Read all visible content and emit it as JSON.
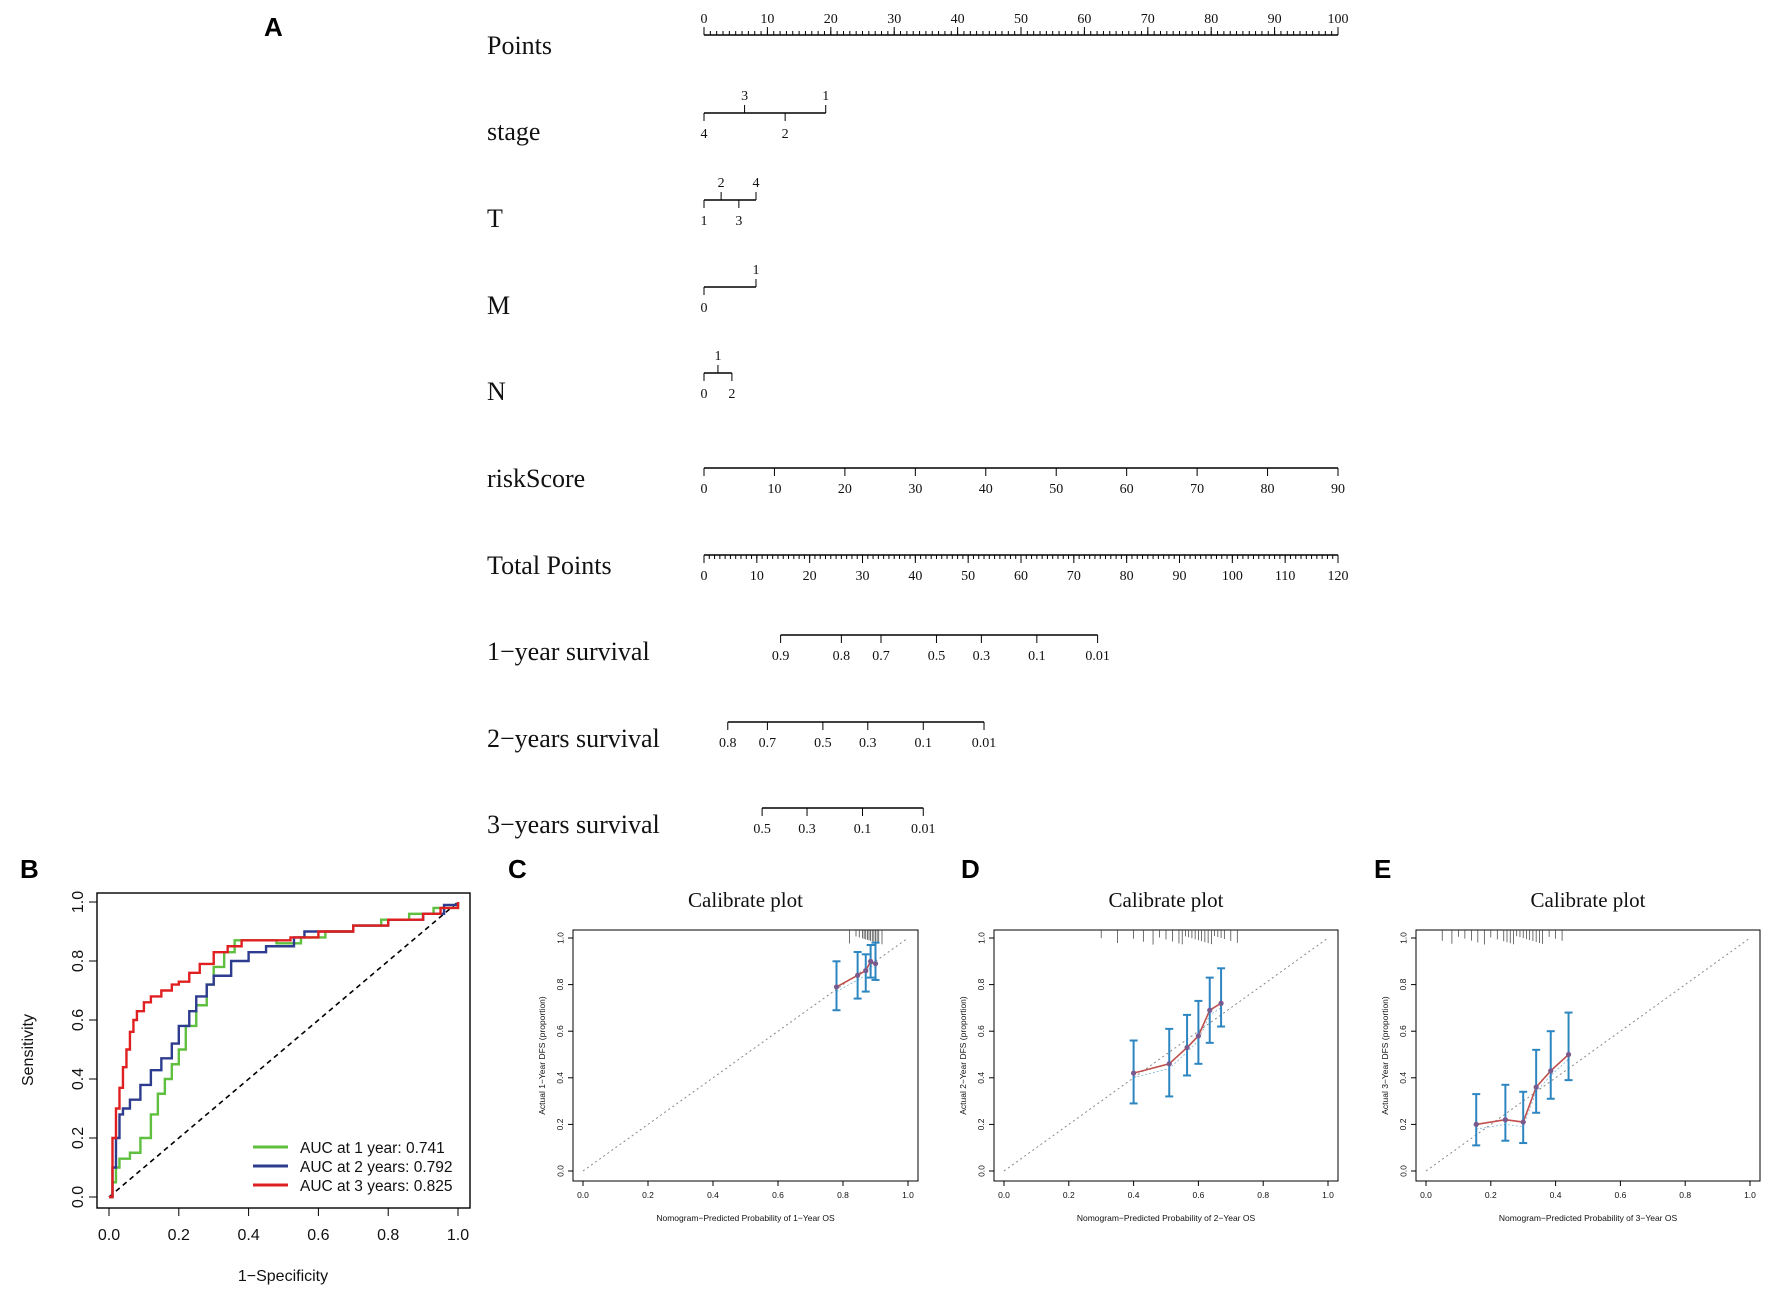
{
  "panels": {
    "A": "A",
    "B": "B",
    "C": "C",
    "D": "D",
    "E": "E"
  },
  "chart_data": [
    {
      "panel": "A",
      "type": "nomogram",
      "rows": [
        {
          "label": "Points",
          "kind": "scale",
          "min": 0,
          "max": 100,
          "ticks": [
            "0",
            "10",
            "20",
            "30",
            "40",
            "50",
            "60",
            "70",
            "80",
            "90",
            "100"
          ],
          "minor_step": 1
        },
        {
          "label": "stage",
          "kind": "categorical",
          "span_points": [
            0,
            19.2
          ],
          "above": [
            {
              "text": "3",
              "points": 6.4
            },
            {
              "text": "1",
              "points": 19.2
            }
          ],
          "below": [
            {
              "text": "4",
              "points": 0
            },
            {
              "text": "2",
              "points": 12.8
            }
          ]
        },
        {
          "label": "T",
          "kind": "categorical",
          "span_points": [
            0,
            8.2
          ],
          "above": [
            {
              "text": "2",
              "points": 2.7
            },
            {
              "text": "4",
              "points": 8.2
            }
          ],
          "below": [
            {
              "text": "1",
              "points": 0
            },
            {
              "text": "3",
              "points": 5.5
            }
          ]
        },
        {
          "label": "M",
          "kind": "categorical",
          "span_points": [
            0,
            8.2
          ],
          "above": [
            {
              "text": "1",
              "points": 8.2
            }
          ],
          "below": [
            {
              "text": "0",
              "points": 0
            }
          ]
        },
        {
          "label": "N",
          "kind": "categorical",
          "span_points": [
            0,
            4.4
          ],
          "above": [
            {
              "text": "1",
              "points": 2.2
            }
          ],
          "below": [
            {
              "text": "0",
              "points": 0
            },
            {
              "text": "2",
              "points": 4.4
            }
          ]
        },
        {
          "label": "riskScore",
          "kind": "scale",
          "min": 0,
          "max": 90,
          "ticks": [
            "0",
            "10",
            "20",
            "30",
            "40",
            "50",
            "60",
            "70",
            "80",
            "90"
          ],
          "minor_step": 0
        },
        {
          "label": "Total Points",
          "kind": "scale",
          "min": 0,
          "max": 120,
          "ticks": [
            "0",
            "10",
            "20",
            "30",
            "40",
            "50",
            "60",
            "70",
            "80",
            "90",
            "100",
            "110",
            "120"
          ],
          "minor_step": 1
        },
        {
          "label": "1−year survival",
          "kind": "survival",
          "marks": [
            {
              "text": "0.9",
              "total": 14.5
            },
            {
              "text": "0.8",
              "total": 26
            },
            {
              "text": "0.7",
              "total": 33.5
            },
            {
              "text": "0.5",
              "total": 44
            },
            {
              "text": "0.3",
              "total": 52.5
            },
            {
              "text": "0.1",
              "total": 63
            },
            {
              "text": "0.01",
              "total": 74.5
            }
          ]
        },
        {
          "label": "2−years survival",
          "kind": "survival",
          "marks": [
            {
              "text": "0.8",
              "total": 4.5
            },
            {
              "text": "0.7",
              "total": 12
            },
            {
              "text": "0.5",
              "total": 22.5
            },
            {
              "text": "0.3",
              "total": 31
            },
            {
              "text": "0.1",
              "total": 41.5
            },
            {
              "text": "0.01",
              "total": 53
            }
          ]
        },
        {
          "label": "3−years survival",
          "kind": "survival",
          "marks": [
            {
              "text": "0.5",
              "total": 11
            },
            {
              "text": "0.3",
              "total": 19.5
            },
            {
              "text": "0.1",
              "total": 30
            },
            {
              "text": "0.01",
              "total": 41.5
            }
          ]
        }
      ]
    },
    {
      "panel": "B",
      "type": "line",
      "xlabel": "1−Specificity",
      "ylabel": "Sensitivity",
      "xlim": [
        0,
        1
      ],
      "ylim": [
        0,
        1
      ],
      "xticks": [
        "0.0",
        "0.2",
        "0.4",
        "0.6",
        "0.8",
        "1.0"
      ],
      "yticks": [
        "0.0",
        "0.2",
        "0.4",
        "0.6",
        "0.8",
        "1.0"
      ],
      "legend_position": "bottom-right",
      "series": [
        {
          "name": "AUC at 1 year: 0.741",
          "color": "#5fbf3f",
          "x": [
            0,
            0.01,
            0.02,
            0.03,
            0.06,
            0.09,
            0.12,
            0.14,
            0.16,
            0.18,
            0.2,
            0.22,
            0.25,
            0.28,
            0.3,
            0.33,
            0.36,
            0.38,
            0.42,
            0.48,
            0.55,
            0.62,
            0.7,
            0.78,
            0.86,
            0.93,
            1
          ],
          "y": [
            0,
            0.05,
            0.1,
            0.13,
            0.15,
            0.2,
            0.28,
            0.35,
            0.4,
            0.45,
            0.5,
            0.58,
            0.65,
            0.72,
            0.78,
            0.83,
            0.87,
            0.87,
            0.87,
            0.86,
            0.88,
            0.9,
            0.92,
            0.94,
            0.96,
            0.98,
            1
          ]
        },
        {
          "name": "AUC at 2 years: 0.792",
          "color": "#2e3c8f",
          "x": [
            0,
            0.01,
            0.02,
            0.03,
            0.04,
            0.06,
            0.09,
            0.12,
            0.15,
            0.18,
            0.2,
            0.23,
            0.25,
            0.28,
            0.3,
            0.35,
            0.4,
            0.45,
            0.5,
            0.53,
            0.56,
            0.62,
            0.7,
            0.8,
            0.9,
            0.96,
            1
          ],
          "y": [
            0,
            0.1,
            0.2,
            0.28,
            0.3,
            0.33,
            0.38,
            0.43,
            0.47,
            0.52,
            0.58,
            0.63,
            0.68,
            0.72,
            0.75,
            0.8,
            0.83,
            0.85,
            0.85,
            0.88,
            0.9,
            0.9,
            0.92,
            0.94,
            0.96,
            0.99,
            1
          ]
        },
        {
          "name": "AUC at 3 years: 0.825",
          "color": "#e02020",
          "x": [
            0,
            0.01,
            0.02,
            0.03,
            0.04,
            0.05,
            0.06,
            0.07,
            0.08,
            0.1,
            0.12,
            0.15,
            0.18,
            0.2,
            0.23,
            0.26,
            0.3,
            0.34,
            0.38,
            0.45,
            0.52,
            0.6,
            0.7,
            0.8,
            0.9,
            0.95,
            1
          ],
          "y": [
            0,
            0.2,
            0.3,
            0.37,
            0.44,
            0.5,
            0.56,
            0.6,
            0.63,
            0.66,
            0.68,
            0.7,
            0.72,
            0.73,
            0.76,
            0.79,
            0.83,
            0.85,
            0.87,
            0.87,
            0.88,
            0.9,
            0.92,
            0.94,
            0.96,
            0.98,
            1
          ]
        }
      ],
      "reference_line": "diagonal"
    },
    {
      "panel": "C",
      "type": "scatter",
      "title": "Calibrate plot",
      "xlabel": "Nomogram−Predicted Probability of 1−Year OS",
      "ylabel": "Actual 1−Year DFS (proportion)",
      "xlim": [
        0,
        1
      ],
      "ylim": [
        0,
        1
      ],
      "xticks": [
        "0.0",
        "0.2",
        "0.4",
        "0.6",
        "0.8",
        "1.0"
      ],
      "yticks": [
        "0.0",
        "0.2",
        "0.4",
        "0.6",
        "0.8",
        "1.0"
      ],
      "points": [
        {
          "x": 0.78,
          "y": 0.79,
          "lo": 0.69,
          "hi": 0.9
        },
        {
          "x": 0.845,
          "y": 0.84,
          "lo": 0.74,
          "hi": 0.94
        },
        {
          "x": 0.87,
          "y": 0.86,
          "lo": 0.77,
          "hi": 0.93
        },
        {
          "x": 0.885,
          "y": 0.9,
          "lo": 0.83,
          "hi": 0.97
        },
        {
          "x": 0.9,
          "y": 0.89,
          "lo": 0.82,
          "hi": 0.98
        }
      ],
      "rug": [
        0.82,
        0.84,
        0.85,
        0.86,
        0.865,
        0.87,
        0.875,
        0.88,
        0.885,
        0.89,
        0.895,
        0.9,
        0.905,
        0.91,
        0.92
      ]
    },
    {
      "panel": "D",
      "type": "scatter",
      "title": "Calibrate plot",
      "xlabel": "Nomogram−Predicted Probability of 2−Year OS",
      "ylabel": "Actual 2−Year DFS (proportion)",
      "xlim": [
        0,
        1
      ],
      "ylim": [
        0,
        1
      ],
      "xticks": [
        "0.0",
        "0.2",
        "0.4",
        "0.6",
        "0.8",
        "1.0"
      ],
      "yticks": [
        "0.0",
        "0.2",
        "0.4",
        "0.6",
        "0.8",
        "1.0"
      ],
      "points": [
        {
          "x": 0.4,
          "y": 0.42,
          "lo": 0.29,
          "hi": 0.56
        },
        {
          "x": 0.51,
          "y": 0.46,
          "lo": 0.32,
          "hi": 0.61
        },
        {
          "x": 0.565,
          "y": 0.53,
          "lo": 0.41,
          "hi": 0.67
        },
        {
          "x": 0.6,
          "y": 0.58,
          "lo": 0.46,
          "hi": 0.73
        },
        {
          "x": 0.635,
          "y": 0.69,
          "lo": 0.55,
          "hi": 0.83
        },
        {
          "x": 0.67,
          "y": 0.72,
          "lo": 0.62,
          "hi": 0.87
        }
      ],
      "rug": [
        0.3,
        0.35,
        0.4,
        0.43,
        0.46,
        0.48,
        0.5,
        0.52,
        0.54,
        0.55,
        0.56,
        0.57,
        0.58,
        0.59,
        0.6,
        0.61,
        0.62,
        0.63,
        0.64,
        0.65,
        0.66,
        0.67,
        0.68,
        0.7,
        0.72
      ]
    },
    {
      "panel": "E",
      "type": "scatter",
      "title": "Calibrate plot",
      "xlabel": "Nomogram−Predicted Probability of 3−Year OS",
      "ylabel": "Actual 3−Year DFS (proportion)",
      "xlim": [
        0,
        1
      ],
      "ylim": [
        0,
        1
      ],
      "xticks": [
        "0.0",
        "0.2",
        "0.4",
        "0.6",
        "0.8",
        "1.0"
      ],
      "yticks": [
        "0.0",
        "0.2",
        "0.4",
        "0.6",
        "0.8",
        "1.0"
      ],
      "points": [
        {
          "x": 0.155,
          "y": 0.2,
          "lo": 0.11,
          "hi": 0.33
        },
        {
          "x": 0.245,
          "y": 0.22,
          "lo": 0.13,
          "hi": 0.37
        },
        {
          "x": 0.3,
          "y": 0.21,
          "lo": 0.12,
          "hi": 0.34
        },
        {
          "x": 0.34,
          "y": 0.36,
          "lo": 0.25,
          "hi": 0.52
        },
        {
          "x": 0.385,
          "y": 0.43,
          "lo": 0.31,
          "hi": 0.6
        },
        {
          "x": 0.44,
          "y": 0.5,
          "lo": 0.39,
          "hi": 0.68
        }
      ],
      "rug": [
        0.05,
        0.08,
        0.1,
        0.12,
        0.14,
        0.16,
        0.18,
        0.2,
        0.22,
        0.24,
        0.25,
        0.26,
        0.27,
        0.28,
        0.29,
        0.3,
        0.31,
        0.32,
        0.33,
        0.34,
        0.35,
        0.36,
        0.38,
        0.4,
        0.42
      ]
    }
  ],
  "colors": {
    "calib_line": "#c0504d",
    "calib_err": "#2e86c1",
    "diag": "#888888"
  }
}
